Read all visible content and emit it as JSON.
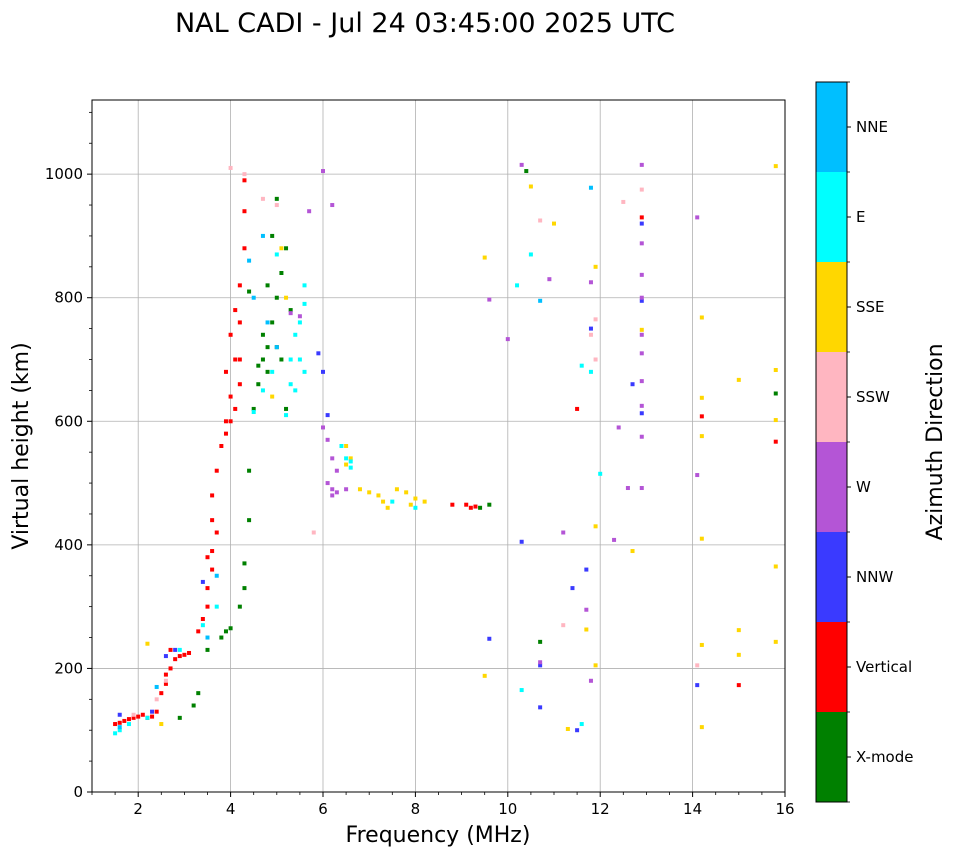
{
  "chart_data": {
    "type": "scatter",
    "title": "NAL CADI - Jul 24 03:45:00 2025 UTC",
    "xlabel": "Frequency (MHz)",
    "ylabel": "Virtual height (km)",
    "xlim": [
      1,
      16
    ],
    "ylim": [
      0,
      1120
    ],
    "xticks": [
      2,
      4,
      6,
      8,
      10,
      12,
      14,
      16
    ],
    "yticks": [
      0,
      200,
      400,
      600,
      800,
      1000
    ],
    "grid": true,
    "colorbar": {
      "label": "Azimuth Direction",
      "categories": [
        {
          "name": "X-mode",
          "color": "#008000"
        },
        {
          "name": "Vertical",
          "color": "#ff0000"
        },
        {
          "name": "NNW",
          "color": "#3a3aff"
        },
        {
          "name": "W",
          "color": "#b455d6"
        },
        {
          "name": "SSW",
          "color": "#ffb6c1"
        },
        {
          "name": "SSE",
          "color": "#ffd700"
        },
        {
          "name": "E",
          "color": "#00ffff"
        },
        {
          "name": "NNE",
          "color": "#00bfff"
        }
      ]
    },
    "series": [
      {
        "name": "Vertical",
        "points": [
          [
            1.5,
            110
          ],
          [
            1.6,
            112
          ],
          [
            1.7,
            115
          ],
          [
            1.8,
            118
          ],
          [
            1.9,
            120
          ],
          [
            2.0,
            122
          ],
          [
            2.1,
            125
          ],
          [
            2.2,
            120
          ],
          [
            2.3,
            122
          ],
          [
            2.4,
            130
          ],
          [
            2.5,
            160
          ],
          [
            2.6,
            175
          ],
          [
            2.6,
            190
          ],
          [
            2.7,
            200
          ],
          [
            2.8,
            215
          ],
          [
            2.9,
            220
          ],
          [
            3.0,
            222
          ],
          [
            3.1,
            225
          ],
          [
            3.3,
            260
          ],
          [
            3.4,
            280
          ],
          [
            3.5,
            300
          ],
          [
            3.5,
            330
          ],
          [
            3.6,
            360
          ],
          [
            3.6,
            390
          ],
          [
            3.7,
            420
          ],
          [
            3.6,
            440
          ],
          [
            3.6,
            480
          ],
          [
            3.7,
            520
          ],
          [
            3.8,
            560
          ],
          [
            3.9,
            580
          ],
          [
            4.0,
            600
          ],
          [
            4.0,
            640
          ],
          [
            3.9,
            680
          ],
          [
            4.1,
            700
          ],
          [
            4.0,
            740
          ],
          [
            4.1,
            780
          ],
          [
            4.2,
            820
          ],
          [
            4.3,
            880
          ],
          [
            4.3,
            940
          ],
          [
            4.3,
            990
          ],
          [
            4.1,
            620
          ],
          [
            4.2,
            660
          ],
          [
            4.2,
            700
          ],
          [
            9.1,
            465
          ],
          [
            9.2,
            460
          ],
          [
            9.3,
            462
          ],
          [
            8.8,
            465
          ],
          [
            14.2,
            608
          ],
          [
            15.0,
            173
          ],
          [
            15.8,
            567
          ],
          [
            12.9,
            930
          ],
          [
            11.5,
            620
          ],
          [
            2.7,
            230
          ],
          [
            3.5,
            380
          ],
          [
            3.9,
            600
          ],
          [
            4.2,
            760
          ]
        ]
      },
      {
        "name": "X-mode",
        "points": [
          [
            2.9,
            120
          ],
          [
            3.2,
            140
          ],
          [
            3.5,
            230
          ],
          [
            3.8,
            250
          ],
          [
            3.9,
            260
          ],
          [
            4.0,
            265
          ],
          [
            4.2,
            300
          ],
          [
            4.3,
            330
          ],
          [
            4.3,
            370
          ],
          [
            4.4,
            440
          ],
          [
            4.4,
            520
          ],
          [
            4.5,
            620
          ],
          [
            4.6,
            660
          ],
          [
            4.7,
            700
          ],
          [
            4.8,
            720
          ],
          [
            4.9,
            760
          ],
          [
            5.0,
            800
          ],
          [
            5.1,
            840
          ],
          [
            5.2,
            880
          ],
          [
            4.9,
            900
          ],
          [
            5.0,
            960
          ],
          [
            4.7,
            740
          ],
          [
            5.3,
            780
          ],
          [
            4.8,
            820
          ],
          [
            5.1,
            700
          ],
          [
            4.6,
            690
          ],
          [
            10.4,
            1005
          ],
          [
            10.7,
            243
          ],
          [
            9.4,
            460
          ],
          [
            9.6,
            465
          ],
          [
            15.8,
            645
          ],
          [
            4.4,
            810
          ],
          [
            5.2,
            620
          ],
          [
            3.3,
            160
          ],
          [
            4.8,
            680
          ],
          [
            5.0,
            720
          ]
        ]
      },
      {
        "name": "NNW",
        "points": [
          [
            1.6,
            125
          ],
          [
            2.3,
            130
          ],
          [
            2.6,
            220
          ],
          [
            2.8,
            230
          ],
          [
            3.4,
            340
          ],
          [
            5.9,
            710
          ],
          [
            6.0,
            680
          ],
          [
            6.1,
            610
          ],
          [
            10.3,
            405
          ],
          [
            10.7,
            137
          ],
          [
            11.4,
            330
          ],
          [
            11.7,
            360
          ],
          [
            12.7,
            660
          ],
          [
            12.9,
            613
          ],
          [
            12.9,
            795
          ],
          [
            14.1,
            173
          ],
          [
            9.6,
            248
          ],
          [
            10.7,
            205
          ],
          [
            11.8,
            750
          ],
          [
            11.5,
            100
          ],
          [
            12.9,
            920
          ]
        ]
      },
      {
        "name": "W",
        "points": [
          [
            6.0,
            590
          ],
          [
            6.1,
            570
          ],
          [
            6.2,
            540
          ],
          [
            6.3,
            520
          ],
          [
            6.1,
            500
          ],
          [
            6.2,
            490
          ],
          [
            6.3,
            485
          ],
          [
            6.2,
            480
          ],
          [
            6.5,
            490
          ],
          [
            6.0,
            1005
          ],
          [
            6.2,
            950
          ],
          [
            5.7,
            940
          ],
          [
            10.3,
            1015
          ],
          [
            10.9,
            830
          ],
          [
            11.8,
            825
          ],
          [
            12.9,
            1015
          ],
          [
            12.9,
            888
          ],
          [
            12.9,
            837
          ],
          [
            12.9,
            800
          ],
          [
            12.9,
            740
          ],
          [
            12.9,
            710
          ],
          [
            12.9,
            665
          ],
          [
            12.9,
            625
          ],
          [
            12.9,
            575
          ],
          [
            12.9,
            492
          ],
          [
            12.6,
            492
          ],
          [
            14.1,
            930
          ],
          [
            14.1,
            513
          ],
          [
            12.4,
            590
          ],
          [
            11.7,
            295
          ],
          [
            11.8,
            180
          ],
          [
            11.2,
            420
          ],
          [
            12.3,
            408
          ],
          [
            10.0,
            733
          ],
          [
            9.6,
            797
          ],
          [
            5.3,
            775
          ],
          [
            5.5,
            770
          ],
          [
            10.7,
            210
          ]
        ]
      },
      {
        "name": "SSW",
        "points": [
          [
            1.9,
            125
          ],
          [
            2.4,
            150
          ],
          [
            2.6,
            180
          ],
          [
            4.0,
            1010
          ],
          [
            4.3,
            1000
          ],
          [
            4.7,
            960
          ],
          [
            5.0,
            950
          ],
          [
            12.9,
            975
          ],
          [
            12.5,
            955
          ],
          [
            11.9,
            765
          ],
          [
            11.8,
            740
          ],
          [
            11.9,
            700
          ],
          [
            10.7,
            925
          ],
          [
            14.1,
            205
          ],
          [
            5.8,
            420
          ],
          [
            11.2,
            270
          ]
        ]
      },
      {
        "name": "SSE",
        "points": [
          [
            2.2,
            240
          ],
          [
            2.5,
            110
          ],
          [
            6.5,
            560
          ],
          [
            6.6,
            540
          ],
          [
            6.5,
            530
          ],
          [
            6.8,
            490
          ],
          [
            7.0,
            485
          ],
          [
            7.2,
            480
          ],
          [
            7.3,
            470
          ],
          [
            7.4,
            460
          ],
          [
            7.6,
            490
          ],
          [
            7.8,
            485
          ],
          [
            8.0,
            475
          ],
          [
            8.2,
            470
          ],
          [
            7.9,
            465
          ],
          [
            9.5,
            865
          ],
          [
            9.5,
            188
          ],
          [
            10.5,
            980
          ],
          [
            11.0,
            920
          ],
          [
            11.9,
            850
          ],
          [
            11.9,
            430
          ],
          [
            11.7,
            263
          ],
          [
            11.9,
            205
          ],
          [
            12.7,
            390
          ],
          [
            12.9,
            748
          ],
          [
            14.2,
            768
          ],
          [
            14.2,
            638
          ],
          [
            14.2,
            576
          ],
          [
            14.2,
            410
          ],
          [
            14.2,
            238
          ],
          [
            14.2,
            105
          ],
          [
            15.0,
            667
          ],
          [
            15.0,
            262
          ],
          [
            15.0,
            222
          ],
          [
            15.8,
            683
          ],
          [
            15.8,
            602
          ],
          [
            15.8,
            365
          ],
          [
            15.8,
            243
          ],
          [
            15.8,
            1013
          ],
          [
            11.3,
            102
          ],
          [
            5.1,
            880
          ],
          [
            5.2,
            800
          ],
          [
            4.9,
            640
          ]
        ]
      },
      {
        "name": "E",
        "points": [
          [
            1.5,
            95
          ],
          [
            1.6,
            100
          ],
          [
            1.8,
            110
          ],
          [
            2.2,
            120
          ],
          [
            2.9,
            230
          ],
          [
            3.4,
            270
          ],
          [
            3.7,
            300
          ],
          [
            4.5,
            615
          ],
          [
            4.7,
            650
          ],
          [
            4.9,
            680
          ],
          [
            5.3,
            700
          ],
          [
            5.4,
            740
          ],
          [
            5.5,
            760
          ],
          [
            5.6,
            790
          ],
          [
            5.6,
            820
          ],
          [
            5.5,
            700
          ],
          [
            5.6,
            680
          ],
          [
            5.4,
            650
          ],
          [
            5.2,
            610
          ],
          [
            6.4,
            560
          ],
          [
            6.5,
            540
          ],
          [
            6.6,
            535
          ],
          [
            6.6,
            525
          ],
          [
            7.5,
            470
          ],
          [
            8.0,
            460
          ],
          [
            10.2,
            820
          ],
          [
            10.5,
            870
          ],
          [
            10.3,
            165
          ],
          [
            11.6,
            690
          ],
          [
            11.8,
            680
          ],
          [
            12.0,
            515
          ],
          [
            11.6,
            110
          ],
          [
            5.0,
            870
          ],
          [
            5.3,
            660
          ]
        ]
      },
      {
        "name": "NNE",
        "points": [
          [
            1.6,
            105
          ],
          [
            2.4,
            170
          ],
          [
            3.7,
            350
          ],
          [
            4.5,
            800
          ],
          [
            4.8,
            760
          ],
          [
            5.0,
            720
          ],
          [
            4.7,
            900
          ],
          [
            10.7,
            795
          ],
          [
            11.8,
            978
          ],
          [
            4.4,
            860
          ],
          [
            3.5,
            250
          ]
        ]
      }
    ]
  }
}
